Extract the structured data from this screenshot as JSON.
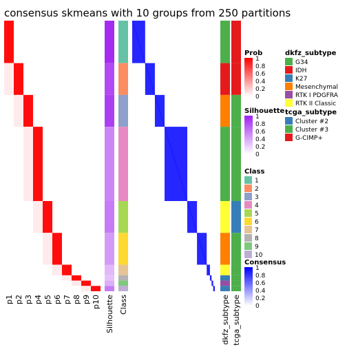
{
  "chart_data": {
    "type": "heatmap",
    "title": "consensus skmeans with 10 groups from 250 partitions",
    "prob_columns": [
      "p1",
      "p2",
      "p3",
      "p4",
      "p5",
      "p6",
      "p7",
      "p8",
      "p9",
      "p10"
    ],
    "annotation_columns": [
      "Silhouette",
      "Class"
    ],
    "right_annotation_columns": [
      "dkfz_subtype",
      "tcga_subtype"
    ],
    "sample_groups": [
      {
        "class": 1,
        "rows": 8,
        "silhouette": 1.0
      },
      {
        "class": 2,
        "rows": 6,
        "silhouette": 0.85
      },
      {
        "class": 3,
        "rows": 6,
        "silhouette": 0.9
      },
      {
        "class": 4,
        "rows": 14,
        "silhouette": 0.55
      },
      {
        "class": 5,
        "rows": 6,
        "silhouette": 0.6
      },
      {
        "class": 6,
        "rows": 6,
        "silhouette": 0.45
      },
      {
        "class": 7,
        "rows": 2,
        "silhouette": 0.3
      },
      {
        "class": 8,
        "rows": 1,
        "silhouette": 0.25
      },
      {
        "class": 9,
        "rows": 1,
        "silhouette": 0.35
      },
      {
        "class": 10,
        "rows": 1,
        "silhouette": 0.6
      }
    ],
    "dkfz_groups": [
      "G34",
      "IDH",
      "Mesenchymal",
      "G34",
      "RTK II Classic",
      "Mesenchymal",
      "RTK II Classic",
      "K27",
      "RTK I PDGFRA",
      "K27"
    ],
    "tcga_groups": [
      "G-CIMP+",
      "G-CIMP+",
      "Cluster #3",
      "Cluster #3",
      "Cluster #2",
      "Cluster #3",
      "Cluster #3",
      "Cluster #3",
      "Cluster #3",
      "Cluster #3"
    ]
  },
  "legends": {
    "prob": {
      "title": "Prob",
      "ticks": [
        "1",
        "0.8",
        "0.6",
        "0.4",
        "0.2",
        "0"
      ]
    },
    "silhouette": {
      "title": "Silhouette",
      "ticks": [
        "1",
        "0.8",
        "0.6",
        "0.4",
        "0.2",
        "0"
      ]
    },
    "class": {
      "title": "Class",
      "items": [
        "1",
        "2",
        "3",
        "4",
        "5",
        "6",
        "7",
        "8",
        "9",
        "10"
      ],
      "colors": [
        "#66C2A5",
        "#FC8D62",
        "#8DA0CB",
        "#E78AC3",
        "#A6D854",
        "#FFD92F",
        "#E5C494",
        "#B3B3B3",
        "#7FC97F",
        "#BEAED4"
      ]
    },
    "consensus": {
      "title": "Consensus",
      "ticks": [
        "1",
        "0.8",
        "0.6",
        "0.4",
        "0.2",
        "0"
      ]
    },
    "dkfz": {
      "title": "dkfz_subtype",
      "items": [
        "G34",
        "IDH",
        "K27",
        "Mesenchymal",
        "RTK I PDGFRA",
        "RTK II Classic"
      ],
      "colors": [
        "#4DAF4A",
        "#E41A1C",
        "#377EB8",
        "#FF7F00",
        "#984EA3",
        "#FFFF33"
      ]
    },
    "tcga": {
      "title": "tcga_subtype",
      "items": [
        "Cluster #2",
        "Cluster #3",
        "G-CIMP+"
      ],
      "colors": [
        "#377EB8",
        "#4DAF4A",
        "#E41A1C"
      ]
    }
  },
  "colors": {
    "prob_high": "#FF0000",
    "consensus_high": "#0000FF",
    "silhouette_high": "#A020F0"
  }
}
